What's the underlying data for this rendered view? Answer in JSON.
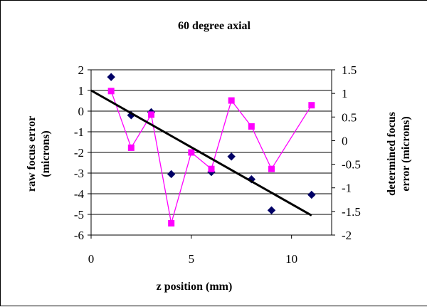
{
  "chart_data": {
    "type": "scatter",
    "title": "60 degree axial",
    "xlabel": "z position (mm)",
    "ylabel_left_lines": [
      "raw focus error",
      "(microns)"
    ],
    "ylabel_right_lines": [
      "determined focus",
      "error (microns)"
    ],
    "xlim": [
      0,
      12
    ],
    "ylim_left": [
      -6,
      2
    ],
    "ylim_right": [
      -2,
      1.5
    ],
    "x_ticks": [
      0,
      5,
      10
    ],
    "y_ticks_left": [
      2,
      1,
      0,
      -1,
      -2,
      -3,
      -4,
      -5,
      -6
    ],
    "y_ticks_right": [
      1.5,
      1,
      0.5,
      0,
      -0.5,
      -1,
      -1.5,
      -2
    ],
    "grid": "horizontal",
    "legend": "none",
    "series": [
      {
        "marker": "diamond",
        "color": "#000066",
        "axis": "left",
        "x": [
          1,
          2,
          3,
          4,
          6,
          7,
          8,
          9,
          11
        ],
        "y": [
          1.65,
          -0.2,
          -0.05,
          -3.05,
          -2.95,
          -2.2,
          -3.3,
          -4.8,
          -4.05
        ]
      },
      {
        "marker": "square",
        "line": true,
        "color": "#ff00ff",
        "axis": "right",
        "x": [
          1,
          2,
          3,
          4,
          5,
          6,
          7,
          8,
          9,
          11
        ],
        "y": [
          1.05,
          -0.15,
          0.55,
          -1.75,
          -0.25,
          -0.6,
          0.85,
          0.3,
          -0.6,
          0.75
        ]
      },
      {
        "marker": "none",
        "line": true,
        "color": "#000000",
        "axis": "left",
        "x": [
          0,
          11
        ],
        "y": [
          1.0,
          -5.05
        ]
      }
    ]
  }
}
